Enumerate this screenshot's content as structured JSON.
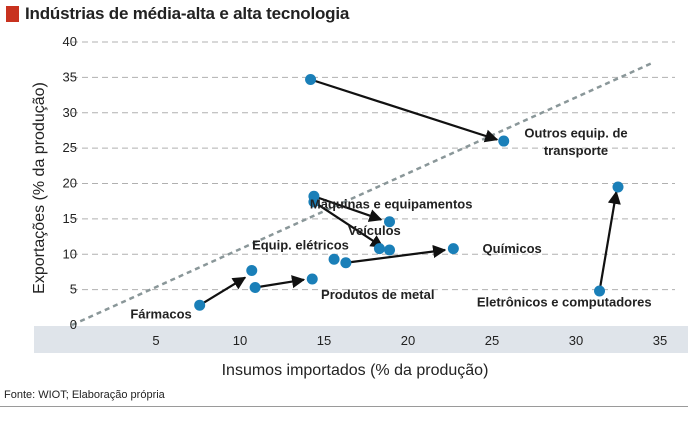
{
  "header": {
    "title": "Indústrias de média-alta e alta tecnologia"
  },
  "footer": {
    "source": "Fonte: WIOT; Elaboração própria"
  },
  "chart_data": {
    "type": "scatter",
    "title": "Indústrias de média-alta e alta tecnologia",
    "xlabel": "Insumos importados (% da produção)",
    "ylabel": "Exportações (% da produção)",
    "xlim": [
      0,
      35
    ],
    "ylim": [
      0,
      40
    ],
    "x_ticks": [
      5,
      10,
      15,
      20,
      25,
      30,
      35
    ],
    "y_ticks": [
      0,
      5,
      10,
      15,
      20,
      25,
      30,
      35,
      40
    ],
    "grid": "horizontal dashed",
    "reference_line": {
      "label": "",
      "from": [
        0,
        0
      ],
      "to": [
        34.5,
        37
      ]
    },
    "colors": {
      "point": "#1a7fb8",
      "arrow": "#111111",
      "diagonal": "#8a9799",
      "grid": "#b0b0b0",
      "axis_band": "#dfe4ea"
    },
    "points": [
      {
        "x": 14.2,
        "y": 34.7
      },
      {
        "x": 25.7,
        "y": 26.0
      },
      {
        "x": 14.4,
        "y": 18.2
      },
      {
        "x": 14.4,
        "y": 17.4
      },
      {
        "x": 18.9,
        "y": 14.6
      },
      {
        "x": 18.3,
        "y": 10.8
      },
      {
        "x": 18.9,
        "y": 10.6
      },
      {
        "x": 22.7,
        "y": 10.8
      },
      {
        "x": 15.6,
        "y": 9.3
      },
      {
        "x": 16.3,
        "y": 8.8
      },
      {
        "x": 10.7,
        "y": 7.7
      },
      {
        "x": 10.9,
        "y": 5.3
      },
      {
        "x": 14.3,
        "y": 6.5
      },
      {
        "x": 7.6,
        "y": 2.8
      },
      {
        "x": 31.4,
        "y": 4.8
      },
      {
        "x": 32.5,
        "y": 19.5
      }
    ],
    "arrows": [
      {
        "from": [
          14.2,
          34.7
        ],
        "to": [
          25.3,
          26.2
        ]
      },
      {
        "from": [
          14.4,
          18.2
        ],
        "to": [
          18.4,
          14.9
        ]
      },
      {
        "from": [
          14.4,
          17.4
        ],
        "to": [
          18.5,
          11.0
        ]
      },
      {
        "from": [
          16.3,
          8.8
        ],
        "to": [
          22.2,
          10.6
        ]
      },
      {
        "from": [
          7.6,
          2.8
        ],
        "to": [
          10.3,
          6.7
        ]
      },
      {
        "from": [
          10.9,
          5.3
        ],
        "to": [
          13.8,
          6.4
        ]
      },
      {
        "from": [
          31.4,
          4.8
        ],
        "to": [
          32.4,
          18.8
        ]
      }
    ],
    "labels": [
      {
        "text": "Outros equip. de",
        "x": 30.0,
        "y": 26.5
      },
      {
        "text": "transporte",
        "x": 30.0,
        "y": 24.0
      },
      {
        "text": "Máquinas e equipamentos",
        "x": 19.0,
        "y": 16.5
      },
      {
        "text": "Veículos",
        "x": 18.0,
        "y": 12.7
      },
      {
        "text": "Equip. elétricos",
        "x": 13.6,
        "y": 10.7
      },
      {
        "text": "Químicos",
        "x": 26.2,
        "y": 10.2
      },
      {
        "text": "Produtos de metal",
        "x": 18.2,
        "y": 3.7
      },
      {
        "text": "Fármacos",
        "x": 5.3,
        "y": 0.9
      },
      {
        "text": "Eletrônicos e computadores",
        "x": 29.3,
        "y": 2.6
      }
    ]
  }
}
